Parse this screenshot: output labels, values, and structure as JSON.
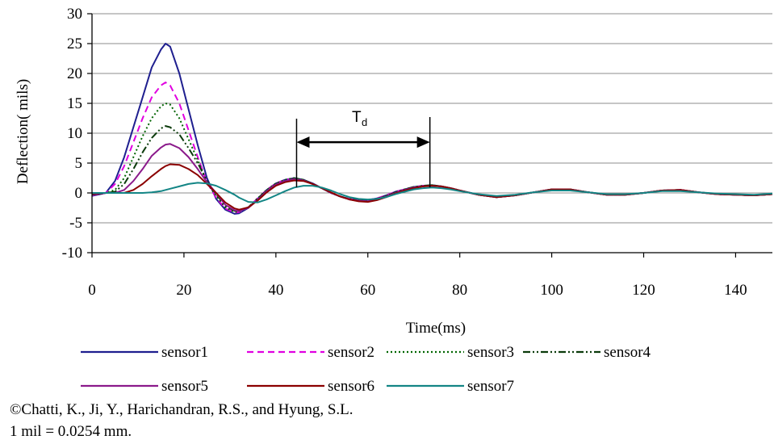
{
  "chart_data": {
    "type": "line",
    "title": "",
    "xlabel": "Time(ms)",
    "ylabel": "Deflection( mils)",
    "xlim": [
      0,
      148
    ],
    "ylim": [
      -10,
      30
    ],
    "xticks": [
      0,
      20,
      40,
      60,
      80,
      100,
      120,
      140
    ],
    "yticks": [
      -10,
      -5,
      0,
      5,
      10,
      15,
      20,
      25,
      30
    ],
    "grid": "horizontal",
    "legend_position": "bottom",
    "x": [
      0,
      3,
      5,
      7,
      9,
      11,
      13,
      15,
      16,
      17,
      19,
      21,
      23,
      25,
      27,
      29,
      31,
      32,
      34,
      36,
      38,
      40,
      42,
      44,
      46,
      48,
      50,
      52,
      54,
      56,
      58,
      60,
      62,
      64,
      66,
      68,
      70,
      72,
      74,
      76,
      78,
      80,
      84,
      88,
      92,
      96,
      100,
      104,
      108,
      112,
      116,
      120,
      124,
      128,
      132,
      136,
      140,
      144,
      148
    ],
    "series": [
      {
        "name": "sensor1",
        "color": "#1f1f8f",
        "dash": "solid",
        "values": [
          -0.5,
          0,
          2,
          6,
          11,
          16,
          21,
          24,
          25,
          24.5,
          20,
          14,
          8,
          2.5,
          -1,
          -2.8,
          -3.5,
          -3.4,
          -2.5,
          -1,
          0.5,
          1.6,
          2.2,
          2.5,
          2.2,
          1.6,
          0.8,
          0,
          -0.6,
          -1,
          -1.2,
          -1.2,
          -0.9,
          -0.4,
          0.2,
          0.6,
          1.0,
          1.2,
          1.3,
          1.1,
          0.8,
          0.4,
          -0.3,
          -0.7,
          -0.4,
          0.1,
          0.6,
          0.6,
          0.1,
          -0.3,
          -0.3,
          0,
          0.4,
          0.5,
          0.1,
          -0.2,
          -0.3,
          -0.4,
          -0.2
        ]
      },
      {
        "name": "sensor2",
        "color": "#e000e0",
        "dash": "8,5",
        "values": [
          -0.4,
          0,
          1.5,
          4.5,
          8.5,
          12.5,
          16,
          18,
          18.5,
          18,
          15,
          10.5,
          6,
          1.8,
          -0.8,
          -2.6,
          -3.3,
          -3.2,
          -2.4,
          -0.9,
          0.5,
          1.6,
          2.2,
          2.4,
          2.1,
          1.5,
          0.8,
          0,
          -0.6,
          -1,
          -1.2,
          -1.2,
          -0.9,
          -0.4,
          0.2,
          0.6,
          1.0,
          1.2,
          1.2,
          1.0,
          0.8,
          0.4,
          -0.3,
          -0.7,
          -0.4,
          0.1,
          0.6,
          0.6,
          0.1,
          -0.3,
          -0.3,
          0,
          0.4,
          0.5,
          0.1,
          -0.2,
          -0.3,
          -0.4,
          -0.2
        ]
      },
      {
        "name": "sensor3",
        "color": "#006400",
        "dash": "2,3",
        "values": [
          -0.3,
          0,
          0.5,
          2.5,
          6,
          9.5,
          12.5,
          14.5,
          15,
          14.8,
          12.5,
          9,
          5.5,
          1.8,
          -0.5,
          -2.4,
          -3.2,
          -3.1,
          -2.4,
          -0.9,
          0.5,
          1.6,
          2.2,
          2.5,
          2.2,
          1.5,
          0.8,
          0,
          -0.6,
          -1,
          -1.2,
          -1.3,
          -1.0,
          -0.5,
          0.1,
          0.6,
          1.0,
          1.2,
          1.3,
          1.1,
          0.8,
          0.4,
          -0.3,
          -0.7,
          -0.4,
          0.1,
          0.6,
          0.6,
          0.1,
          -0.3,
          -0.3,
          0,
          0.4,
          0.5,
          0.1,
          -0.2,
          -0.3,
          -0.4,
          -0.2
        ]
      },
      {
        "name": "sensor4",
        "color": "#0b3b0b",
        "dash": "9,3,2,3,2,3",
        "values": [
          -0.3,
          0,
          0.2,
          1.5,
          4,
          6.8,
          9.2,
          10.8,
          11.2,
          11,
          9.8,
          7.5,
          5,
          2,
          -0.2,
          -2.2,
          -3.0,
          -3.0,
          -2.4,
          -1,
          0.4,
          1.5,
          2.1,
          2.4,
          2.2,
          1.5,
          0.8,
          0,
          -0.6,
          -1.1,
          -1.3,
          -1.3,
          -1.0,
          -0.5,
          0.1,
          0.6,
          1.0,
          1.2,
          1.3,
          1.1,
          0.8,
          0.4,
          -0.3,
          -0.7,
          -0.4,
          0.1,
          0.6,
          0.6,
          0.1,
          -0.3,
          -0.3,
          0,
          0.4,
          0.5,
          0.1,
          -0.2,
          -0.3,
          -0.4,
          -0.2
        ]
      },
      {
        "name": "sensor5",
        "color": "#8b1a8b",
        "dash": "solid",
        "values": [
          -0.2,
          0,
          0,
          0.5,
          2,
          4,
          6.2,
          7.6,
          8.1,
          8.2,
          7.5,
          6,
          4,
          1.8,
          0,
          -2,
          -2.9,
          -3.0,
          -2.5,
          -1.2,
          0.3,
          1.4,
          2.0,
          2.3,
          2.1,
          1.5,
          0.8,
          0,
          -0.6,
          -1.1,
          -1.3,
          -1.4,
          -1.1,
          -0.6,
          0,
          0.5,
          0.9,
          1.1,
          1.2,
          1.1,
          0.8,
          0.4,
          -0.3,
          -0.7,
          -0.4,
          0.1,
          0.6,
          0.6,
          0.1,
          -0.3,
          -0.3,
          0,
          0.4,
          0.5,
          0.1,
          -0.2,
          -0.3,
          -0.4,
          -0.2
        ]
      },
      {
        "name": "sensor6",
        "color": "#8b0000",
        "dash": "solid",
        "values": [
          -0.1,
          0,
          0,
          0,
          0.5,
          1.5,
          2.8,
          4,
          4.5,
          4.8,
          4.7,
          4,
          3,
          1.5,
          0,
          -1.6,
          -2.6,
          -2.8,
          -2.4,
          -1.3,
          0.1,
          1.2,
          1.8,
          2.1,
          2.0,
          1.5,
          0.8,
          0.1,
          -0.6,
          -1.1,
          -1.4,
          -1.5,
          -1.2,
          -0.7,
          -0.1,
          0.4,
          0.8,
          1.1,
          1.2,
          1.1,
          0.8,
          0.4,
          -0.3,
          -0.7,
          -0.4,
          0.1,
          0.6,
          0.6,
          0.1,
          -0.3,
          -0.3,
          0,
          0.4,
          0.5,
          0.1,
          -0.2,
          -0.3,
          -0.4,
          -0.2
        ]
      },
      {
        "name": "sensor7",
        "color": "#138585",
        "dash": "solid",
        "values": [
          0,
          0,
          0,
          0,
          0,
          0,
          0.1,
          0.3,
          0.5,
          0.7,
          1.1,
          1.5,
          1.7,
          1.6,
          1.2,
          0.5,
          -0.3,
          -0.8,
          -1.5,
          -1.6,
          -1.1,
          -0.4,
          0.3,
          0.9,
          1.2,
          1.2,
          0.9,
          0.4,
          -0.2,
          -0.7,
          -1.0,
          -1.1,
          -1.0,
          -0.7,
          -0.2,
          0.2,
          0.6,
          0.8,
          0.9,
          0.8,
          0.6,
          0.3,
          -0.2,
          -0.5,
          -0.3,
          0.1,
          0.4,
          0.4,
          0.1,
          -0.2,
          -0.2,
          0,
          0.3,
          0.3,
          0.1,
          -0.1,
          -0.2,
          -0.3,
          -0.1
        ]
      }
    ],
    "annotations": [
      {
        "label": "T",
        "subscript": "d",
        "x_start": 44.5,
        "x_end": 73.5,
        "y_arrow": 8.5
      }
    ]
  },
  "notes": {
    "copyright": "©Chatti, K., Ji, Y., Harichandran, R.S., and Hyung, S.L.",
    "conversion": "1 mil = 0.0254 mm."
  }
}
